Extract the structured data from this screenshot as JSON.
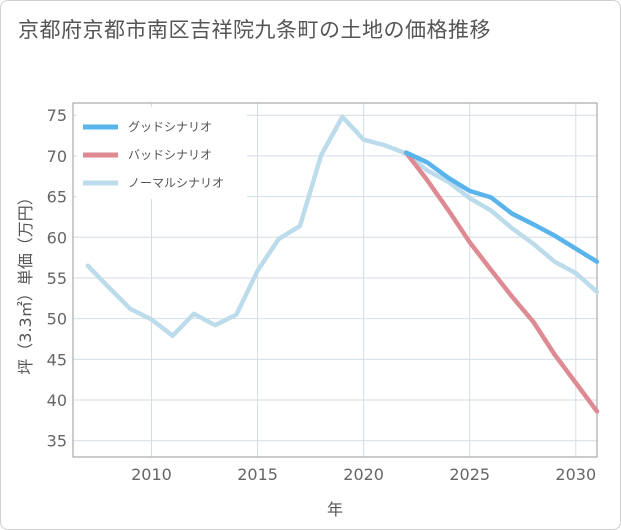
{
  "header": {
    "title": "京都府京都市南区吉祥院九条町の土地の価格推移"
  },
  "chart_data": {
    "type": "line",
    "title": "京都府京都市南区吉祥院九条町の土地の価格推移",
    "xlabel": "年",
    "ylabel": "坪（3.3㎡）単価（万円）",
    "xlim": [
      2006.3,
      2031
    ],
    "ylim": [
      33,
      76.5
    ],
    "xticks": [
      2010,
      2015,
      2020,
      2025,
      2030
    ],
    "yticks": [
      35,
      40,
      45,
      50,
      55,
      60,
      65,
      70,
      75
    ],
    "grid": true,
    "legend_position": "top-left",
    "series": [
      {
        "name": "グッドシナリオ",
        "color": "#5ab4ec",
        "x": [
          2022,
          2023,
          2024,
          2025,
          2026,
          2027,
          2028,
          2029,
          2030,
          2031
        ],
        "values": [
          70.4,
          69.2,
          67.3,
          65.7,
          64.9,
          62.9,
          61.6,
          60.2,
          58.6,
          57.0
        ]
      },
      {
        "name": "バッドシナリオ",
        "color": "#de8a92",
        "x": [
          2022,
          2023,
          2024,
          2025,
          2026,
          2027,
          2028,
          2029,
          2030,
          2031
        ],
        "values": [
          70.4,
          67.0,
          63.3,
          59.4,
          56.0,
          52.7,
          49.6,
          45.6,
          42.1,
          38.6
        ]
      },
      {
        "name": "ノーマルシナリオ",
        "color": "#bcdcec",
        "x": [
          2007,
          2008,
          2009,
          2010,
          2011,
          2012,
          2013,
          2014,
          2015,
          2016,
          2017,
          2018,
          2019,
          2020,
          2021,
          2022,
          2023,
          2024,
          2025,
          2026,
          2027,
          2028,
          2029,
          2030,
          2031
        ],
        "values": [
          56.5,
          53.8,
          51.2,
          49.9,
          47.9,
          50.6,
          49.2,
          50.5,
          55.9,
          59.8,
          61.4,
          70.1,
          74.8,
          72.0,
          71.3,
          70.3,
          68.2,
          66.8,
          64.8,
          63.3,
          61.1,
          59.2,
          57.0,
          55.6,
          53.3
        ]
      }
    ]
  }
}
